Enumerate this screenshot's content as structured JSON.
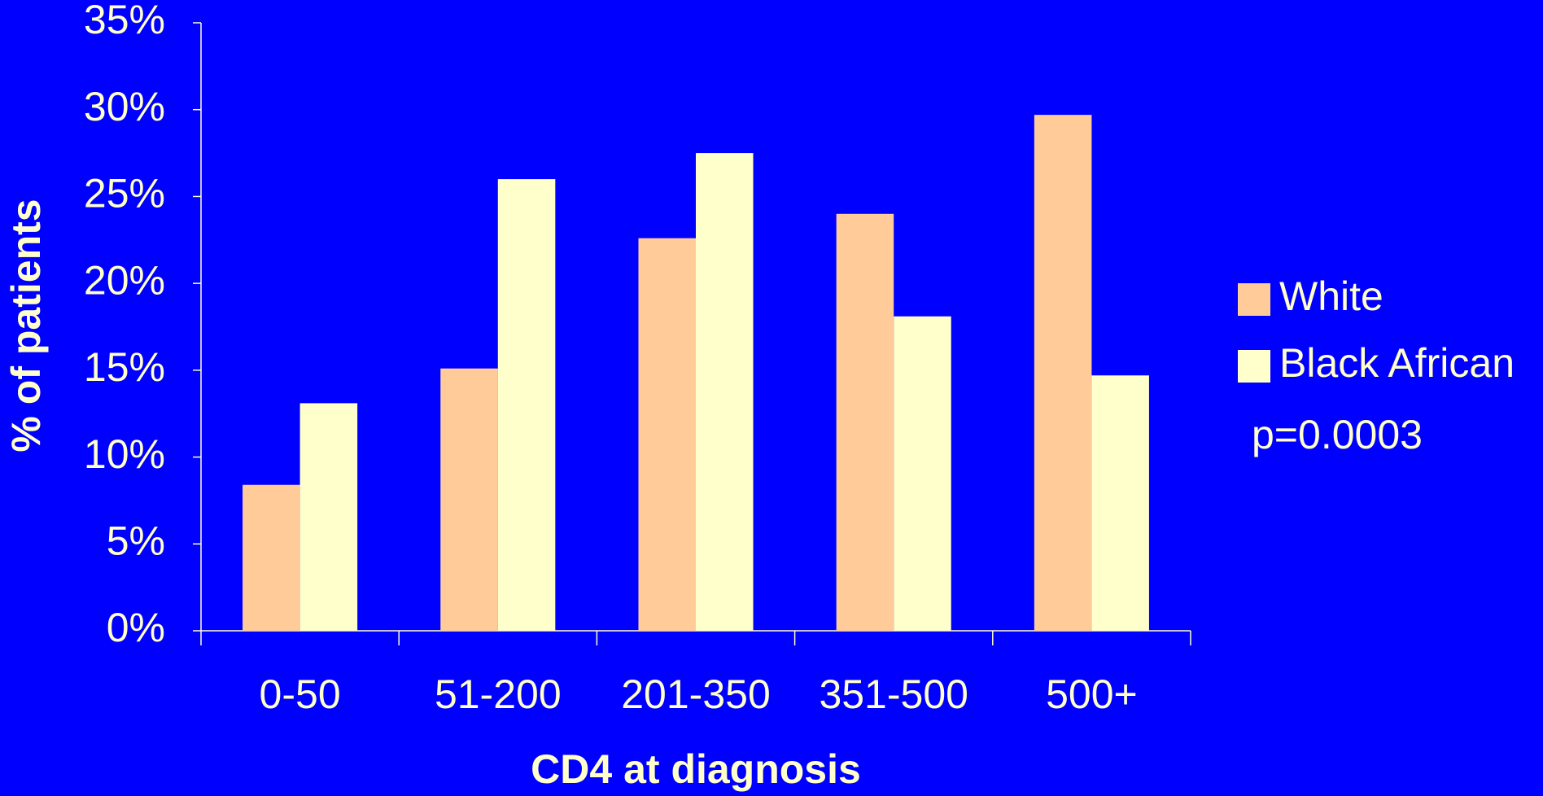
{
  "chart_data": {
    "type": "bar",
    "categories": [
      "0-50",
      "51-200",
      "201-350",
      "351-500",
      "500+"
    ],
    "series": [
      {
        "name": "White",
        "color": "#ffcc99",
        "values": [
          8.4,
          15.1,
          22.6,
          24.0,
          29.7
        ]
      },
      {
        "name": "Black African",
        "color": "#ffffcc",
        "values": [
          13.1,
          26.0,
          27.5,
          18.1,
          14.7
        ]
      }
    ],
    "ylim": [
      0,
      35
    ],
    "yticks": [
      {
        "value": 0,
        "label": "0%"
      },
      {
        "value": 5,
        "label": "5%"
      },
      {
        "value": 10,
        "label": "10%"
      },
      {
        "value": 15,
        "label": "15%"
      },
      {
        "value": 20,
        "label": "20%"
      },
      {
        "value": 25,
        "label": "25%"
      },
      {
        "value": 30,
        "label": "30%"
      },
      {
        "value": 35,
        "label": "35%"
      }
    ],
    "y_label": "% of patients",
    "x_label": "CD4 at diagnosis",
    "annotation": "p=0.0003",
    "grid": false,
    "legend": "right"
  }
}
